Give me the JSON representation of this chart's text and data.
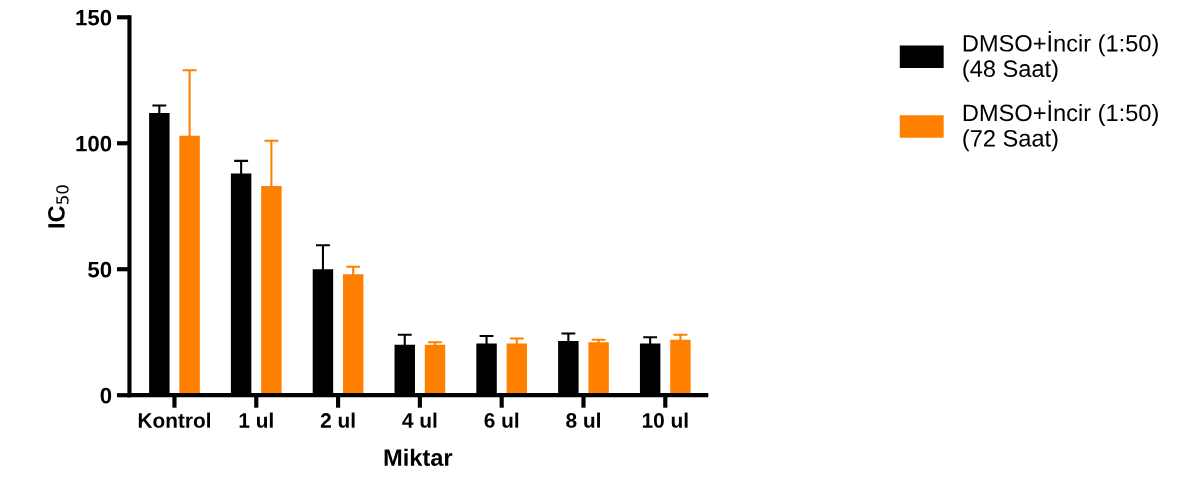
{
  "chart_data": {
    "type": "bar",
    "xlabel": "Miktar",
    "ylabel": "IC$_{50}$",
    "categories": [
      "Kontrol",
      "1 ul",
      "2 ul",
      "4 ul",
      "6 ul",
      "8 ul",
      "10 ul"
    ],
    "series": [
      {
        "name": "DMSO+İncir (1:50) (48 Saat)",
        "color": "#000000",
        "values": [
          112,
          88,
          50,
          20,
          20.5,
          21.5,
          20.5
        ],
        "errors": [
          3,
          5,
          9.5,
          4,
          3,
          3,
          2.5
        ]
      },
      {
        "name": "DMSO+İncir (1:50) (72 Saat)",
        "color": "#ff8000",
        "values": [
          103,
          83,
          48,
          20,
          20.5,
          21,
          22
        ],
        "errors": [
          26,
          18,
          3,
          1,
          2,
          1,
          2
        ]
      }
    ],
    "ylim": [
      0,
      150
    ],
    "yticks": [
      0,
      50,
      100,
      150
    ],
    "legend": "right",
    "grid": false
  }
}
